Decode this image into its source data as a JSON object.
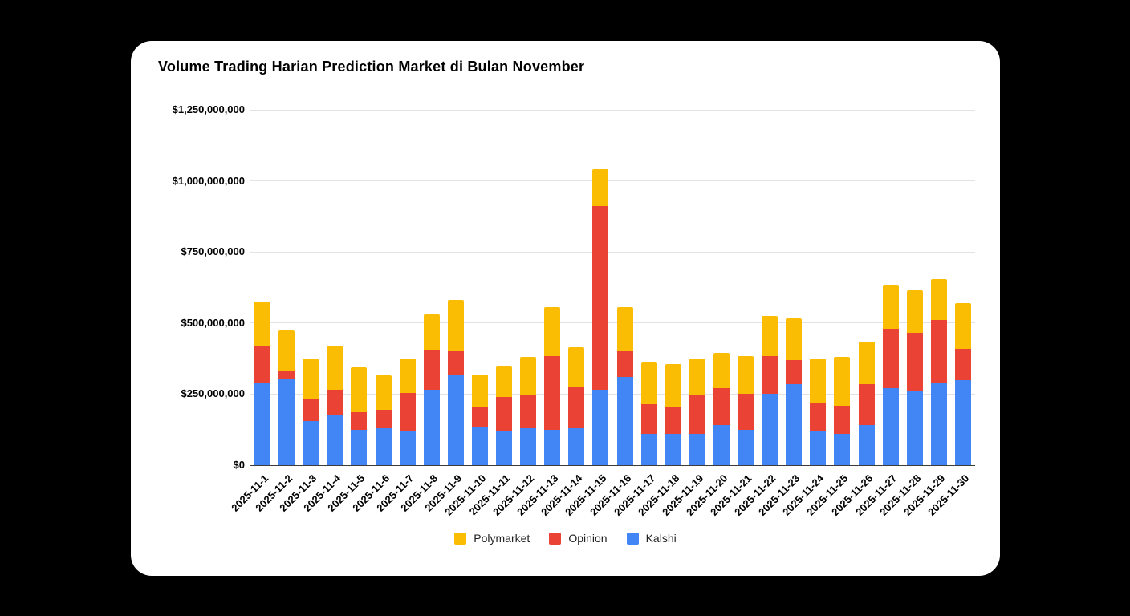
{
  "header": {
    "title": "Volume Trading Harian Prediction Market di Bulan November"
  },
  "chart_data": {
    "type": "bar",
    "stacked": true,
    "title": "Volume Trading Harian Prediction Market di Bulan November",
    "xlabel": "",
    "ylabel": "",
    "grid": true,
    "categories": [
      "2025-11-1",
      "2025-11-2",
      "2025-11-3",
      "2025-11-4",
      "2025-11-5",
      "2025-11-6",
      "2025-11-7",
      "2025-11-8",
      "2025-11-9",
      "2025-11-10",
      "2025-11-11",
      "2025-11-12",
      "2025-11-13",
      "2025-11-14",
      "2025-11-15",
      "2025-11-16",
      "2025-11-17",
      "2025-11-18",
      "2025-11-19",
      "2025-11-20",
      "2025-11-21",
      "2025-11-22",
      "2025-11-23",
      "2025-11-24",
      "2025-11-25",
      "2025-11-26",
      "2025-11-27",
      "2025-11-28",
      "2025-11-29",
      "2025-11-30"
    ],
    "series": [
      {
        "name": "Kalshi",
        "color": "#4285F4",
        "values": [
          290000000,
          305000000,
          155000000,
          175000000,
          125000000,
          130000000,
          120000000,
          265000000,
          315000000,
          135000000,
          120000000,
          130000000,
          125000000,
          130000000,
          265000000,
          310000000,
          110000000,
          110000000,
          110000000,
          140000000,
          125000000,
          250000000,
          285000000,
          120000000,
          110000000,
          140000000,
          270000000,
          260000000,
          290000000,
          300000000
        ]
      },
      {
        "name": "Opinion",
        "color": "#EA4335",
        "values": [
          130000000,
          25000000,
          80000000,
          90000000,
          60000000,
          65000000,
          135000000,
          140000000,
          85000000,
          70000000,
          120000000,
          115000000,
          260000000,
          145000000,
          645000000,
          90000000,
          105000000,
          95000000,
          135000000,
          130000000,
          125000000,
          135000000,
          85000000,
          100000000,
          100000000,
          145000000,
          210000000,
          205000000,
          220000000,
          110000000
        ]
      },
      {
        "name": "Polymarket",
        "color": "#FBBC04",
        "values": [
          155000000,
          145000000,
          140000000,
          155000000,
          160000000,
          120000000,
          120000000,
          125000000,
          180000000,
          115000000,
          110000000,
          135000000,
          170000000,
          140000000,
          130000000,
          155000000,
          150000000,
          150000000,
          130000000,
          125000000,
          135000000,
          140000000,
          145000000,
          155000000,
          170000000,
          150000000,
          155000000,
          150000000,
          145000000,
          160000000
        ]
      }
    ],
    "y_axis": {
      "min": 0,
      "max": 1250000000,
      "tick_interval": 250000000,
      "tick_labels": [
        "$0",
        "$250,000,000",
        "$500,000,000",
        "$750,000,000",
        "$1,000,000,000",
        "$1,250,000,000"
      ]
    },
    "legend": {
      "position": "bottom",
      "items": [
        "Polymarket",
        "Opinion",
        "Kalshi"
      ]
    }
  }
}
